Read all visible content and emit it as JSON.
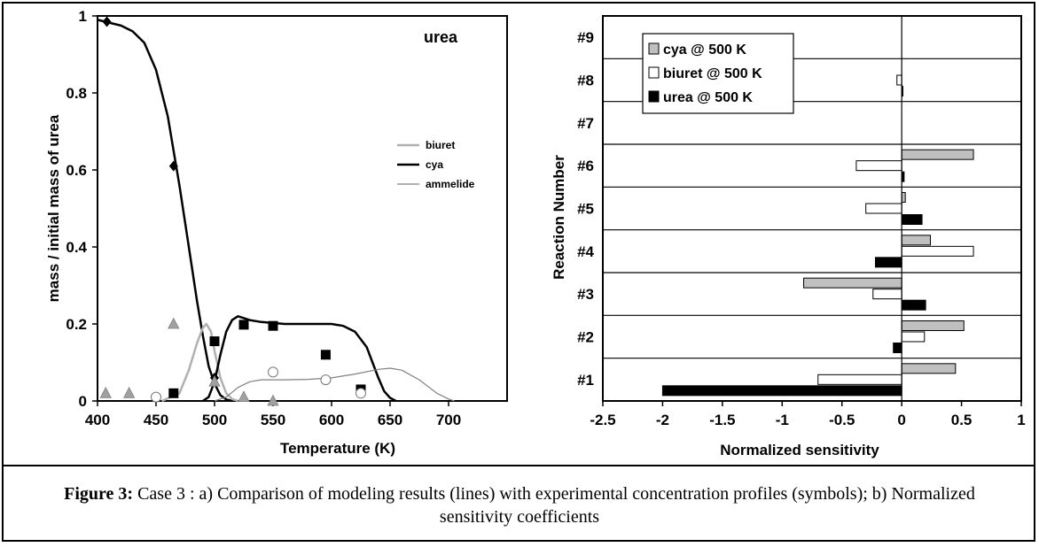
{
  "chart_data": [
    {
      "type": "line",
      "panel": "a",
      "title": "urea",
      "xlabel": "Temperature (K)",
      "ylabel": "mass / initial mass of urea",
      "xlim": [
        400,
        750
      ],
      "ylim": [
        0,
        1
      ],
      "xticks": [
        "400",
        "450",
        "500",
        "550",
        "600",
        "650",
        "700"
      ],
      "yticks": [
        "0",
        "0.2",
        "0.4",
        "0.6",
        "0.8",
        "1"
      ],
      "grid": false,
      "legend_position": "right",
      "model_lines": [
        {
          "name": "",
          "color": "#000000",
          "width": 2.5,
          "points": [
            [
              400,
              0.99
            ],
            [
              420,
              0.975
            ],
            [
              430,
              0.96
            ],
            [
              440,
              0.93
            ],
            [
              450,
              0.86
            ],
            [
              460,
              0.74
            ],
            [
              470,
              0.56
            ],
            [
              478,
              0.4
            ],
            [
              485,
              0.26
            ],
            [
              490,
              0.17
            ],
            [
              495,
              0.09
            ],
            [
              500,
              0.045
            ],
            [
              505,
              0.015
            ],
            [
              510,
              0.004
            ],
            [
              515,
              0.0
            ]
          ]
        },
        {
          "name": "biuret",
          "color": "#b0b0b0",
          "width": 2.5,
          "points": [
            [
              455,
              0.0
            ],
            [
              470,
              0.02
            ],
            [
              478,
              0.08
            ],
            [
              485,
              0.15
            ],
            [
              490,
              0.19
            ],
            [
              493,
              0.2
            ],
            [
              497,
              0.18
            ],
            [
              500,
              0.13
            ],
            [
              505,
              0.06
            ],
            [
              510,
              0.02
            ],
            [
              515,
              0.005
            ],
            [
              520,
              0.0
            ]
          ]
        },
        {
          "name": "cya",
          "color": "#000000",
          "width": 2.5,
          "points": [
            [
              490,
              0.0
            ],
            [
              495,
              0.01
            ],
            [
              500,
              0.05
            ],
            [
              505,
              0.12
            ],
            [
              510,
              0.18
            ],
            [
              515,
              0.21
            ],
            [
              520,
              0.22
            ],
            [
              530,
              0.21
            ],
            [
              540,
              0.205
            ],
            [
              560,
              0.2
            ],
            [
              580,
              0.2
            ],
            [
              600,
              0.2
            ],
            [
              610,
              0.195
            ],
            [
              620,
              0.18
            ],
            [
              630,
              0.14
            ],
            [
              635,
              0.1
            ],
            [
              640,
              0.06
            ],
            [
              645,
              0.025
            ],
            [
              650,
              0.008
            ],
            [
              655,
              0.0
            ]
          ]
        },
        {
          "name": "ammelide",
          "color": "#808080",
          "width": 1.2,
          "points": [
            [
              500,
              0.0
            ],
            [
              510,
              0.01
            ],
            [
              520,
              0.035
            ],
            [
              530,
              0.05
            ],
            [
              540,
              0.055
            ],
            [
              560,
              0.055
            ],
            [
              580,
              0.056
            ],
            [
              600,
              0.06
            ],
            [
              620,
              0.07
            ],
            [
              640,
              0.082
            ],
            [
              650,
              0.085
            ],
            [
              660,
              0.08
            ],
            [
              675,
              0.055
            ],
            [
              690,
              0.02
            ],
            [
              700,
              0.005
            ],
            [
              705,
              0.0
            ]
          ]
        }
      ],
      "experimental_points": [
        {
          "marker": "diamond",
          "color": "#000000",
          "points": [
            [
              408,
              0.985
            ],
            [
              465,
              0.61
            ],
            [
              500,
              0.06
            ]
          ]
        },
        {
          "marker": "square",
          "color": "#000000",
          "points": [
            [
              465,
              0.02
            ],
            [
              500,
              0.155
            ],
            [
              525,
              0.198
            ],
            [
              550,
              0.195
            ],
            [
              595,
              0.12
            ],
            [
              625,
              0.03
            ]
          ]
        },
        {
          "marker": "triangle",
          "color": "#a0a0a0",
          "points": [
            [
              407,
              0.02
            ],
            [
              427,
              0.02
            ],
            [
              465,
              0.2
            ],
            [
              500,
              0.05
            ],
            [
              525,
              0.01
            ],
            [
              550,
              0.0
            ]
          ]
        },
        {
          "marker": "circle",
          "color": "#ffffff",
          "points": [
            [
              450,
              0.01
            ],
            [
              550,
              0.075
            ],
            [
              595,
              0.055
            ],
            [
              625,
              0.02
            ]
          ]
        }
      ]
    },
    {
      "type": "bar",
      "orientation": "horizontal",
      "panel": "b",
      "xlabel": "Normalized sensitivity",
      "ylabel": "Reaction Number",
      "xlim": [
        -2.5,
        1
      ],
      "xticks": [
        "-2.5",
        "-2",
        "-1.5",
        "-1",
        "-0.5",
        "0",
        "0.5",
        "1"
      ],
      "categories": [
        "#1",
        "#2",
        "#3",
        "#4",
        "#5",
        "#6",
        "#7",
        "#8",
        "#9"
      ],
      "legend_position": "top-left",
      "series": [
        {
          "name": "cya @ 500 K",
          "color": "#c0c0c0",
          "values": [
            0.45,
            0.52,
            -0.82,
            0.24,
            0.03,
            0.6,
            0,
            0,
            0
          ]
        },
        {
          "name": "biuret @ 500 K",
          "color": "#ffffff",
          "values": [
            -0.7,
            0.19,
            -0.24,
            0.6,
            -0.3,
            -0.38,
            0,
            -0.04,
            0
          ]
        },
        {
          "name": "urea @ 500 K",
          "color": "#000000",
          "values": [
            -2.0,
            -0.07,
            0.2,
            -0.22,
            0.17,
            0.02,
            0,
            0.01,
            0
          ]
        }
      ]
    }
  ],
  "caption": {
    "label": "Figure 3:",
    "text": " Case 3 : a) Comparison of modeling results (lines) with experimental concentration profiles (symbols);  b)  Normalized sensitivity coefficients"
  }
}
